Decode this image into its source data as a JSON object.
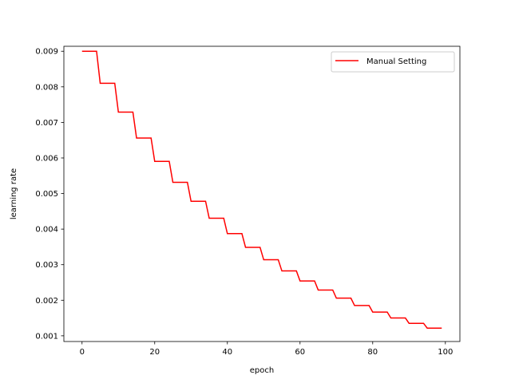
{
  "chart_data": {
    "type": "line",
    "title": "",
    "xlabel": "epoch",
    "ylabel": "learning rate",
    "xlim": [
      -5,
      104
    ],
    "ylim": [
      0.00084,
      0.00914
    ],
    "xticks": [
      0,
      20,
      40,
      60,
      80,
      100
    ],
    "yticks": [
      0.001,
      0.002,
      0.003,
      0.004,
      0.005,
      0.006,
      0.007,
      0.008,
      0.009
    ],
    "xtick_labels": [
      "0",
      "20",
      "40",
      "60",
      "80",
      "100"
    ],
    "ytick_labels": [
      "0.001",
      "0.002",
      "0.003",
      "0.004",
      "0.005",
      "0.006",
      "0.007",
      "0.008",
      "0.009"
    ],
    "grid": false,
    "legend_position": "top-right",
    "series": [
      {
        "name": "Manual Setting",
        "color": "#ff0000",
        "x": [
          0,
          4,
          5,
          9,
          10,
          14,
          15,
          19,
          20,
          24,
          25,
          29,
          30,
          34,
          35,
          39,
          40,
          44,
          45,
          49,
          50,
          54,
          55,
          59,
          60,
          64,
          65,
          69,
          70,
          74,
          75,
          79,
          80,
          84,
          85,
          89,
          90,
          94,
          95,
          99
        ],
        "y": [
          0.009,
          0.009,
          0.0081,
          0.0081,
          0.00729,
          0.00729,
          0.006561,
          0.006561,
          0.005905,
          0.005905,
          0.005314,
          0.005314,
          0.004783,
          0.004783,
          0.004305,
          0.004305,
          0.003874,
          0.003874,
          0.003487,
          0.003487,
          0.003138,
          0.003138,
          0.002824,
          0.002824,
          0.002542,
          0.002542,
          0.002288,
          0.002288,
          0.002059,
          0.002059,
          0.001853,
          0.001853,
          0.001668,
          0.001668,
          0.001501,
          0.001501,
          0.001351,
          0.001351,
          0.001216,
          0.001216
        ]
      }
    ]
  }
}
